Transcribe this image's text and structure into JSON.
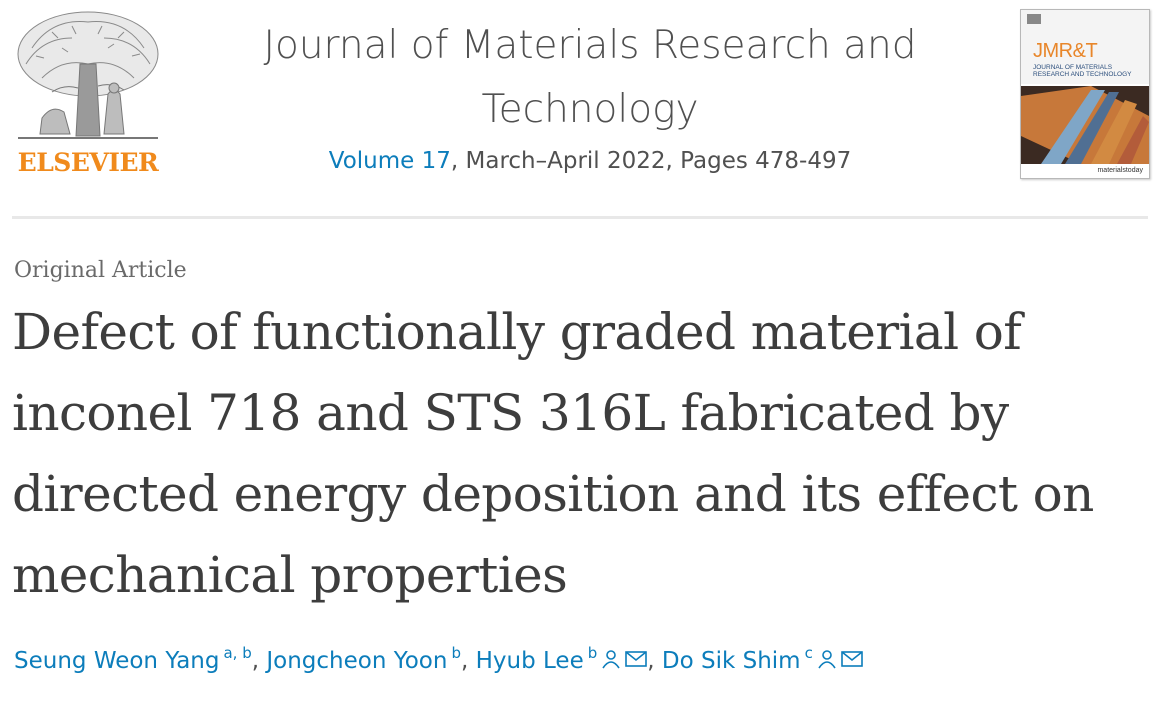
{
  "publisher": {
    "name": "ELSEVIER",
    "logo_icon": "elsevier-tree-icon"
  },
  "journal": {
    "title": "Journal of Materials Research and Technology",
    "volume_link": "Volume 17",
    "issue_details": ", March–April 2022, Pages 478-497"
  },
  "cover": {
    "abbr": "JMR&T",
    "name": "JOURNAL OF MATERIALS RESEARCH AND TECHNOLOGY",
    "brand": "materialstoday"
  },
  "article": {
    "type": "Original Article",
    "title": "Defect of functionally graded material of inconel 718 and STS 316L fabricated by directed energy deposition and its effect on mechanical properties"
  },
  "authors": [
    {
      "name": "Seung Weon Yang",
      "affil": "a, b",
      "sep": ", "
    },
    {
      "name": "Jongcheon Yoon",
      "affil": "b",
      "sep": ", "
    },
    {
      "name": "Hyub Lee",
      "affil": "b",
      "sep": ", ",
      "icons": [
        "person-icon",
        "envelope-icon"
      ]
    },
    {
      "name": "Do Sik Shim",
      "affil": "c",
      "sep": "",
      "icons": [
        "person-icon",
        "envelope-icon"
      ]
    }
  ],
  "colors": {
    "link": "#0c7dbb",
    "publisher": "#f08a1c",
    "text": "#505050",
    "title": "#3d3d3d"
  }
}
